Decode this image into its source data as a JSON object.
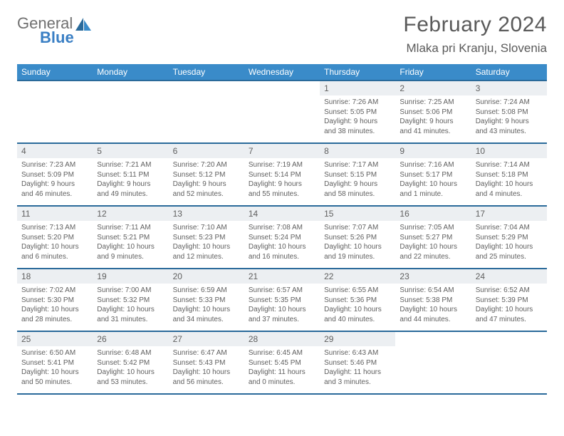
{
  "logo": {
    "word1": "General",
    "word2": "Blue"
  },
  "title": "February 2024",
  "location": "Mlaka pri Kranju, Slovenia",
  "colors": {
    "header_bg": "#3a8bc9",
    "header_border": "#2a6a9a",
    "daynum_bg": "#eceff2",
    "text": "#606060",
    "logo_gray": "#707070",
    "logo_blue": "#3a7fc4"
  },
  "weekdays": [
    "Sunday",
    "Monday",
    "Tuesday",
    "Wednesday",
    "Thursday",
    "Friday",
    "Saturday"
  ],
  "weeks": [
    [
      {
        "empty": true
      },
      {
        "empty": true
      },
      {
        "empty": true
      },
      {
        "empty": true
      },
      {
        "n": "1",
        "sr": "7:26 AM",
        "ss": "5:05 PM",
        "dl": "9 hours and 38 minutes."
      },
      {
        "n": "2",
        "sr": "7:25 AM",
        "ss": "5:06 PM",
        "dl": "9 hours and 41 minutes."
      },
      {
        "n": "3",
        "sr": "7:24 AM",
        "ss": "5:08 PM",
        "dl": "9 hours and 43 minutes."
      }
    ],
    [
      {
        "n": "4",
        "sr": "7:23 AM",
        "ss": "5:09 PM",
        "dl": "9 hours and 46 minutes."
      },
      {
        "n": "5",
        "sr": "7:21 AM",
        "ss": "5:11 PM",
        "dl": "9 hours and 49 minutes."
      },
      {
        "n": "6",
        "sr": "7:20 AM",
        "ss": "5:12 PM",
        "dl": "9 hours and 52 minutes."
      },
      {
        "n": "7",
        "sr": "7:19 AM",
        "ss": "5:14 PM",
        "dl": "9 hours and 55 minutes."
      },
      {
        "n": "8",
        "sr": "7:17 AM",
        "ss": "5:15 PM",
        "dl": "9 hours and 58 minutes."
      },
      {
        "n": "9",
        "sr": "7:16 AM",
        "ss": "5:17 PM",
        "dl": "10 hours and 1 minute."
      },
      {
        "n": "10",
        "sr": "7:14 AM",
        "ss": "5:18 PM",
        "dl": "10 hours and 4 minutes."
      }
    ],
    [
      {
        "n": "11",
        "sr": "7:13 AM",
        "ss": "5:20 PM",
        "dl": "10 hours and 6 minutes."
      },
      {
        "n": "12",
        "sr": "7:11 AM",
        "ss": "5:21 PM",
        "dl": "10 hours and 9 minutes."
      },
      {
        "n": "13",
        "sr": "7:10 AM",
        "ss": "5:23 PM",
        "dl": "10 hours and 12 minutes."
      },
      {
        "n": "14",
        "sr": "7:08 AM",
        "ss": "5:24 PM",
        "dl": "10 hours and 16 minutes."
      },
      {
        "n": "15",
        "sr": "7:07 AM",
        "ss": "5:26 PM",
        "dl": "10 hours and 19 minutes."
      },
      {
        "n": "16",
        "sr": "7:05 AM",
        "ss": "5:27 PM",
        "dl": "10 hours and 22 minutes."
      },
      {
        "n": "17",
        "sr": "7:04 AM",
        "ss": "5:29 PM",
        "dl": "10 hours and 25 minutes."
      }
    ],
    [
      {
        "n": "18",
        "sr": "7:02 AM",
        "ss": "5:30 PM",
        "dl": "10 hours and 28 minutes."
      },
      {
        "n": "19",
        "sr": "7:00 AM",
        "ss": "5:32 PM",
        "dl": "10 hours and 31 minutes."
      },
      {
        "n": "20",
        "sr": "6:59 AM",
        "ss": "5:33 PM",
        "dl": "10 hours and 34 minutes."
      },
      {
        "n": "21",
        "sr": "6:57 AM",
        "ss": "5:35 PM",
        "dl": "10 hours and 37 minutes."
      },
      {
        "n": "22",
        "sr": "6:55 AM",
        "ss": "5:36 PM",
        "dl": "10 hours and 40 minutes."
      },
      {
        "n": "23",
        "sr": "6:54 AM",
        "ss": "5:38 PM",
        "dl": "10 hours and 44 minutes."
      },
      {
        "n": "24",
        "sr": "6:52 AM",
        "ss": "5:39 PM",
        "dl": "10 hours and 47 minutes."
      }
    ],
    [
      {
        "n": "25",
        "sr": "6:50 AM",
        "ss": "5:41 PM",
        "dl": "10 hours and 50 minutes."
      },
      {
        "n": "26",
        "sr": "6:48 AM",
        "ss": "5:42 PM",
        "dl": "10 hours and 53 minutes."
      },
      {
        "n": "27",
        "sr": "6:47 AM",
        "ss": "5:43 PM",
        "dl": "10 hours and 56 minutes."
      },
      {
        "n": "28",
        "sr": "6:45 AM",
        "ss": "5:45 PM",
        "dl": "11 hours and 0 minutes."
      },
      {
        "n": "29",
        "sr": "6:43 AM",
        "ss": "5:46 PM",
        "dl": "11 hours and 3 minutes."
      },
      {
        "empty": true
      },
      {
        "empty": true
      }
    ]
  ],
  "labels": {
    "sunrise": "Sunrise:",
    "sunset": "Sunset:",
    "daylight": "Daylight:"
  }
}
